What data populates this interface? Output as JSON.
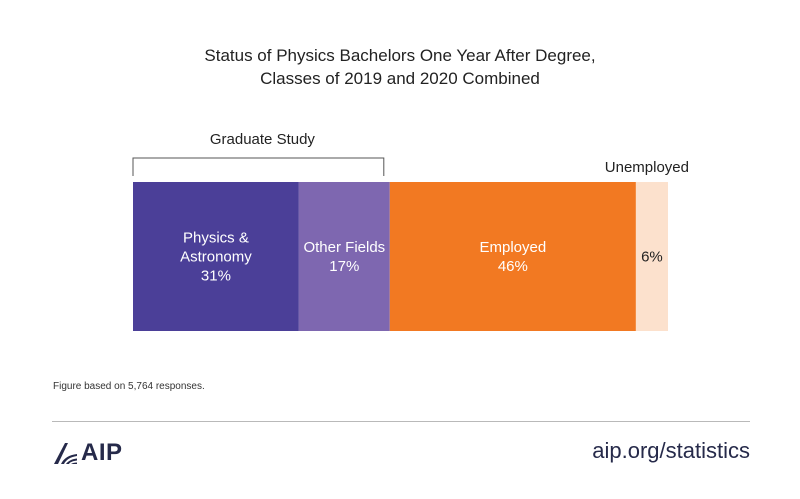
{
  "chart_data": {
    "type": "bar",
    "title": [
      "Status of Physics Bachelors One Year After Degree,",
      "Classes of 2019 and 2020 Combined"
    ],
    "stacked": true,
    "orientation": "horizontal",
    "segments": [
      {
        "label_lines": [
          "Physics &",
          "Astronomy"
        ],
        "value": 31,
        "color": "#4b3f98"
      },
      {
        "label_lines": [
          "Other Fields"
        ],
        "value": 17,
        "color": "#7e67b0"
      },
      {
        "label_lines": [
          "Employed"
        ],
        "value": 46,
        "color": "#f27922"
      },
      {
        "label_lines": [],
        "value": 6,
        "color": "#fce1cd"
      }
    ],
    "group_bracket": {
      "label": "Graduate Study",
      "from_segment": 0,
      "to_segment": 1
    },
    "outside_labels": [
      {
        "segment": 3,
        "label": "Unemployed"
      }
    ],
    "value_suffix": "%"
  },
  "footnote": "Figure based on 5,764 responses.",
  "logo": {
    "text": "AIP",
    "icon": "aip-logo-icon"
  },
  "site": "aip.org/statistics"
}
